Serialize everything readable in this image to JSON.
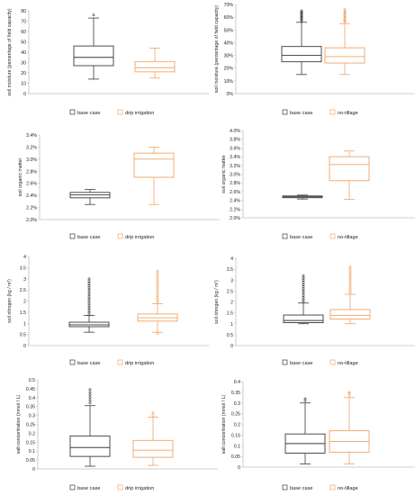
{
  "colors": {
    "base": "#3a3a3a",
    "treat": "#f0a466",
    "axis": "#bfbfbf",
    "text": "#222222"
  },
  "chart_data": [
    {
      "type": "box",
      "ylabel": "soil moisture (percentage of field capacity)",
      "ylim": [
        0,
        80
      ],
      "ticks": [
        0,
        10,
        20,
        30,
        40,
        50,
        60,
        70,
        80
      ],
      "tick_labels": [
        "0",
        "10",
        "20",
        "30",
        "40",
        "50",
        "60",
        "70",
        "80"
      ],
      "legend": [
        "base case",
        "drip irrigation"
      ],
      "series": [
        {
          "name": "base case",
          "min": 14,
          "q1": 27,
          "median": 35,
          "q3": 46,
          "max": 73,
          "outliers": [
            76
          ]
        },
        {
          "name": "drip irrigation",
          "min": 15,
          "q1": 21,
          "median": 25,
          "q3": 31,
          "max": 44,
          "outliers": []
        }
      ]
    },
    {
      "type": "box",
      "ylabel": "soil moisture (percentage of field capacity)",
      "ylim": [
        0,
        70
      ],
      "ticks": [
        0,
        10,
        20,
        30,
        40,
        50,
        60,
        70
      ],
      "tick_labels": [
        "0%",
        "10%",
        "20%",
        "30%",
        "40%",
        "50%",
        "60%",
        "70%"
      ],
      "legend": [
        "base case",
        "no-tillage"
      ],
      "series": [
        {
          "name": "base case",
          "min": 15,
          "q1": 25,
          "median": 30,
          "q3": 37,
          "max": 56,
          "outliers": [
            57,
            58,
            59,
            60,
            61,
            62,
            63,
            64,
            65
          ]
        },
        {
          "name": "no-tillage",
          "min": 15,
          "q1": 24,
          "median": 29,
          "q3": 36,
          "max": 55,
          "outliers": [
            56,
            57,
            58,
            59,
            60,
            61,
            62,
            63,
            64,
            65,
            66
          ]
        }
      ]
    },
    {
      "type": "box",
      "ylabel": "soil organic matter",
      "ylim": [
        2.0,
        3.4
      ],
      "ticks": [
        2.0,
        2.2,
        2.4,
        2.6,
        2.8,
        3.0,
        3.2,
        3.4
      ],
      "tick_labels": [
        "2.0%",
        "2.2%",
        "2.4%",
        "2.6%",
        "2.8%",
        "3.0%",
        "3.2%",
        "3.4%"
      ],
      "legend": [
        "base case",
        "drip irrigation"
      ],
      "series": [
        {
          "name": "base case",
          "min": 2.25,
          "q1": 2.36,
          "median": 2.41,
          "q3": 2.45,
          "max": 2.5,
          "outliers": []
        },
        {
          "name": "drip irrigation",
          "min": 2.25,
          "q1": 2.7,
          "median": 3.0,
          "q3": 3.1,
          "max": 3.2,
          "outliers": []
        }
      ]
    },
    {
      "type": "box",
      "ylabel": "soil organic matter",
      "ylim": [
        2.0,
        4.0
      ],
      "ticks": [
        2.0,
        2.2,
        2.4,
        2.6,
        2.8,
        3.0,
        3.2,
        3.4,
        3.6,
        3.8,
        4.0
      ],
      "tick_labels": [
        "2.0%",
        "2.2%",
        "2.4%",
        "2.6%",
        "2.8%",
        "3.0%",
        "3.2%",
        "3.4%",
        "3.6%",
        "3.8%",
        "4.0%"
      ],
      "legend": [
        "base case",
        "no-tillage"
      ],
      "series": [
        {
          "name": "base case",
          "min": 2.43,
          "q1": 2.46,
          "median": 2.48,
          "q3": 2.5,
          "max": 2.52,
          "outliers": []
        },
        {
          "name": "no-tillage",
          "min": 2.42,
          "q1": 2.85,
          "median": 3.22,
          "q3": 3.4,
          "max": 3.53,
          "outliers": []
        }
      ]
    },
    {
      "type": "box",
      "ylabel": "soil nitrogen (kg / m²)",
      "ylim": [
        0,
        4
      ],
      "ticks": [
        0,
        0.5,
        1,
        1.5,
        2,
        2.5,
        3,
        3.5,
        4
      ],
      "tick_labels": [
        "0",
        "0.5",
        "1",
        "1.5",
        "2",
        "2.5",
        "3",
        "3.5",
        "4"
      ],
      "legend": [
        "base case",
        "drip irrigation"
      ],
      "series": [
        {
          "name": "base case",
          "min": 0.6,
          "q1": 0.85,
          "median": 0.93,
          "q3": 1.05,
          "max": 1.35,
          "outliers": [
            1.4,
            1.5,
            1.6,
            1.7,
            1.8,
            1.9,
            2.0,
            2.1,
            2.2,
            2.3,
            2.4,
            2.5,
            2.6,
            2.7,
            2.8,
            2.9,
            3.0
          ]
        },
        {
          "name": "drip irrigation",
          "min": 0.6,
          "q1": 1.1,
          "median": 1.25,
          "q3": 1.42,
          "max": 1.88,
          "outliers": [
            0.55,
            1.95,
            2.05,
            2.15,
            2.25,
            2.35,
            2.45,
            2.55,
            2.65,
            2.75,
            2.85,
            2.95,
            3.05,
            3.15,
            3.25,
            3.35
          ]
        }
      ]
    },
    {
      "type": "box",
      "ylabel": "soil nitrogen (kg / m²)",
      "ylim": [
        0,
        4
      ],
      "ticks": [
        0,
        0.5,
        1,
        1.5,
        2,
        2.5,
        3,
        3.5,
        4
      ],
      "tick_labels": [
        "0",
        "0.5",
        "1",
        "1.5",
        "2",
        "2.5",
        "3",
        "3.5",
        "4"
      ],
      "legend": [
        "base case",
        "no-tillage"
      ],
      "series": [
        {
          "name": "base case",
          "min": 1.0,
          "q1": 1.05,
          "median": 1.15,
          "q3": 1.4,
          "max": 1.95,
          "outliers": [
            2.0,
            2.1,
            2.2,
            2.3,
            2.4,
            2.5,
            2.6,
            2.7,
            2.8,
            2.9,
            3.0,
            3.1,
            3.2
          ]
        },
        {
          "name": "no-tillage",
          "min": 1.0,
          "q1": 1.22,
          "median": 1.38,
          "q3": 1.65,
          "max": 2.35,
          "outliers": [
            2.4,
            2.5,
            2.6,
            2.7,
            2.8,
            2.9,
            3.0,
            3.1,
            3.2,
            3.3,
            3.4,
            3.5,
            3.6
          ]
        }
      ]
    },
    {
      "type": "box",
      "ylabel": "salt concentration (mmol / L)",
      "ylim": [
        0,
        0.5
      ],
      "ticks": [
        0,
        0.05,
        0.1,
        0.15,
        0.2,
        0.25,
        0.3,
        0.35,
        0.4,
        0.45,
        0.5
      ],
      "tick_labels": [
        "0",
        "0.05",
        "0.1",
        "0.15",
        "0.2",
        "0.25",
        "0.3",
        "0.35",
        "0.4",
        "0.45",
        "0.5"
      ],
      "legend": [
        "base case",
        "drip irrigation"
      ],
      "series": [
        {
          "name": "base case",
          "min": 0.015,
          "q1": 0.07,
          "median": 0.12,
          "q3": 0.185,
          "max": 0.355,
          "outliers": [
            0.37,
            0.385,
            0.4,
            0.415,
            0.43,
            0.445
          ]
        },
        {
          "name": "drip irrigation",
          "min": 0.02,
          "q1": 0.065,
          "median": 0.105,
          "q3": 0.16,
          "max": 0.29,
          "outliers": [
            0.3,
            0.315
          ]
        }
      ]
    },
    {
      "type": "box",
      "ylabel": "salt concentration (mmol / L)",
      "ylim": [
        0,
        0.4
      ],
      "ticks": [
        0,
        0.05,
        0.1,
        0.15,
        0.2,
        0.25,
        0.3,
        0.35,
        0.4
      ],
      "tick_labels": [
        "0",
        "0.05",
        "0.1",
        "0.15",
        "0.2",
        "0.25",
        "0.3",
        "0.35",
        "0.4"
      ],
      "legend": [
        "base case",
        "no-tillage"
      ],
      "series": [
        {
          "name": "base case",
          "min": 0.015,
          "q1": 0.065,
          "median": 0.11,
          "q3": 0.155,
          "max": 0.3,
          "outliers": [
            0.31,
            0.32
          ]
        },
        {
          "name": "no-tillage",
          "min": 0.015,
          "q1": 0.07,
          "median": 0.12,
          "q3": 0.17,
          "max": 0.325,
          "outliers": [
            0.335,
            0.345,
            0.35
          ]
        }
      ]
    }
  ]
}
